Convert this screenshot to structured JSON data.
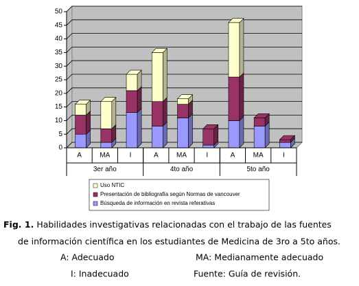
{
  "chart_data": {
    "type": "stacked-bar-3d",
    "categories": [
      "A",
      "MA",
      "I",
      "A",
      "MA",
      "I",
      "A",
      "MA",
      "I"
    ],
    "groups": [
      "3er año",
      "4to año",
      "5to año"
    ],
    "series": [
      {
        "name": "Búsqueda de información en revista referativas",
        "color": "#9999ff",
        "values": [
          5,
          2,
          13,
          8,
          11,
          1,
          10,
          8,
          2
        ]
      },
      {
        "name": "Presentación de bibliografía según Normas de vancouver",
        "color": "#993366",
        "values": [
          7,
          5,
          8,
          9,
          5,
          6,
          16,
          3,
          1
        ]
      },
      {
        "name": "Uso NTIC",
        "color": "#ffffcc",
        "values": [
          4,
          10,
          6,
          18,
          2,
          0,
          20,
          0,
          0
        ]
      }
    ],
    "ylim": [
      0,
      50
    ],
    "yticks": [
      0,
      5,
      10,
      15,
      20,
      25,
      30,
      35,
      40,
      45,
      50
    ],
    "grid": true
  },
  "caption": {
    "label": "Fig. 1.",
    "lines": [
      "Habilidades investigativas relacionadas con el trabajo de las fuentes",
      "de información científica en los estudiantes de Medicina de 3ro a 5to años."
    ]
  },
  "notes": [
    "A: Adecuado",
    "MA: Medianamente adecuado",
    "I: Inadecuado",
    "Fuente: Guía de revisión."
  ]
}
